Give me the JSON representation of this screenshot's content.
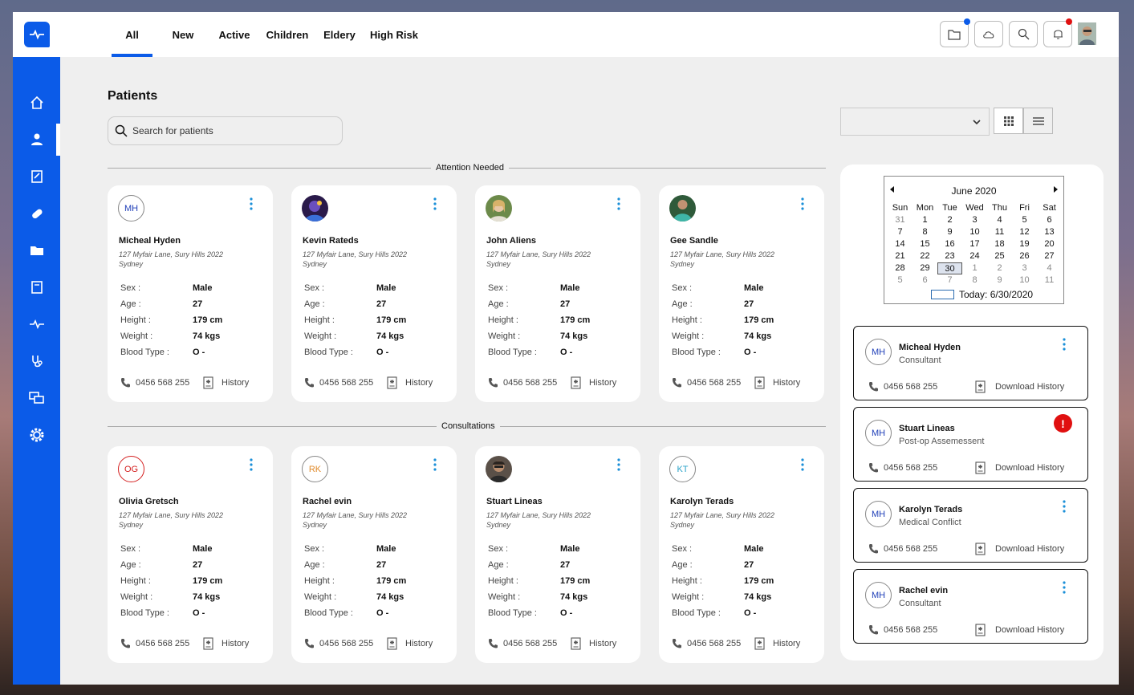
{
  "nav": {
    "tabs": [
      {
        "label": "All",
        "active": true
      },
      {
        "label": "New"
      },
      {
        "label": "Active"
      },
      {
        "label": "Children"
      },
      {
        "label": "Eldery"
      },
      {
        "label": "High Risk"
      }
    ],
    "sidebar_icons": [
      "home-icon",
      "user-icon",
      "clipboard-icon",
      "pill-icon",
      "folder-icon",
      "book-icon",
      "pulse-icon",
      "stethoscope-icon",
      "chat-icon",
      "gear-icon"
    ]
  },
  "colors": {
    "brand": "#0b5be8",
    "alert": "#e01010"
  },
  "page": {
    "title": "Patients",
    "search_placeholder": "Search for patients"
  },
  "sections": {
    "attention": "Attention Needed",
    "consultations": "Consultations"
  },
  "labels": {
    "sex": "Sex :",
    "age": "Age :",
    "height": "Height :",
    "weight": "Weight :",
    "blood": "Blood Type :",
    "history": "History",
    "download_history": "Download History"
  },
  "attention_cards": [
    {
      "initials": "MH",
      "name": "Micheal Hyden",
      "address": "127 Myfair Lane, Sury Hills 2022 Sydney",
      "sex": "Male",
      "age": "27",
      "height": "179 cm",
      "weight": "74 kgs",
      "blood": "O -",
      "phone": "0456 568 255"
    },
    {
      "initials": "",
      "name": "Kevin Rateds",
      "address": "127 Myfair Lane, Sury Hills 2022 Sydney",
      "sex": "Male",
      "age": "27",
      "height": "179 cm",
      "weight": "74 kgs",
      "blood": "O -",
      "phone": "0456 568 255"
    },
    {
      "initials": "",
      "name": "John Aliens",
      "address": "127 Myfair Lane, Sury Hills 2022 Sydney",
      "sex": "Male",
      "age": "27",
      "height": "179 cm",
      "weight": "74 kgs",
      "blood": "O -",
      "phone": "0456 568 255"
    },
    {
      "initials": "",
      "name": "Gee Sandle",
      "address": "127 Myfair Lane, Sury Hills 2022 Sydney",
      "sex": "Male",
      "age": "27",
      "height": "179 cm",
      "weight": "74 kgs",
      "blood": "O -",
      "phone": "0456 568 255"
    }
  ],
  "consultation_cards": [
    {
      "initials": "OG",
      "name": "Olivia Gretsch",
      "address": "127 Myfair Lane, Sury Hills 2022 Sydney",
      "sex": "Male",
      "age": "27",
      "height": "179 cm",
      "weight": "74 kgs",
      "blood": "O -",
      "phone": "0456 568 255"
    },
    {
      "initials": "RK",
      "name": "Rachel evin",
      "address": "127 Myfair Lane, Sury Hills 2022 Sydney",
      "sex": "Male",
      "age": "27",
      "height": "179 cm",
      "weight": "74 kgs",
      "blood": "O -",
      "phone": "0456 568 255"
    },
    {
      "initials": "",
      "name": "Stuart Lineas",
      "address": "127 Myfair Lane, Sury Hills 2022 Sydney",
      "sex": "Male",
      "age": "27",
      "height": "179 cm",
      "weight": "74 kgs",
      "blood": "O -",
      "phone": "0456 568 255"
    },
    {
      "initials": "KT",
      "name": "Karolyn Terads",
      "address": "127 Myfair Lane, Sury Hills 2022 Sydney",
      "sex": "Male",
      "age": "27",
      "height": "179 cm",
      "weight": "74 kgs",
      "blood": "O -",
      "phone": "0456 568 255"
    }
  ],
  "calendar": {
    "month": "June 2020",
    "weekdays": [
      "Sun",
      "Mon",
      "Tue",
      "Wed",
      "Thu",
      "Fri",
      "Sat"
    ],
    "weeks": [
      [
        "31",
        "1",
        "2",
        "3",
        "4",
        "5",
        "6"
      ],
      [
        "7",
        "8",
        "9",
        "10",
        "11",
        "12",
        "13"
      ],
      [
        "14",
        "15",
        "16",
        "17",
        "18",
        "19",
        "20"
      ],
      [
        "21",
        "22",
        "23",
        "24",
        "25",
        "26",
        "27"
      ],
      [
        "28",
        "29",
        "30",
        "1",
        "2",
        "3",
        "4"
      ],
      [
        "5",
        "6",
        "7",
        "8",
        "9",
        "10",
        "11"
      ]
    ],
    "selected": "30",
    "today": "Today: 6/30/2020"
  },
  "consultation_list": [
    {
      "initials": "MH",
      "name": "Micheal Hyden",
      "role": "Consultant",
      "phone": "0456 568 255",
      "alert": false
    },
    {
      "initials": "MH",
      "name": "Stuart Lineas",
      "role": "Post-op Assemessent",
      "phone": "0456 568 255",
      "alert": true,
      "alert_mark": "!"
    },
    {
      "initials": "MH",
      "name": "Karolyn Terads",
      "role": "Medical Conflict",
      "phone": "0456 568 255",
      "alert": false
    },
    {
      "initials": "MH",
      "name": "Rachel evin",
      "role": "Consultant",
      "phone": "0456 568 255",
      "alert": false
    }
  ]
}
